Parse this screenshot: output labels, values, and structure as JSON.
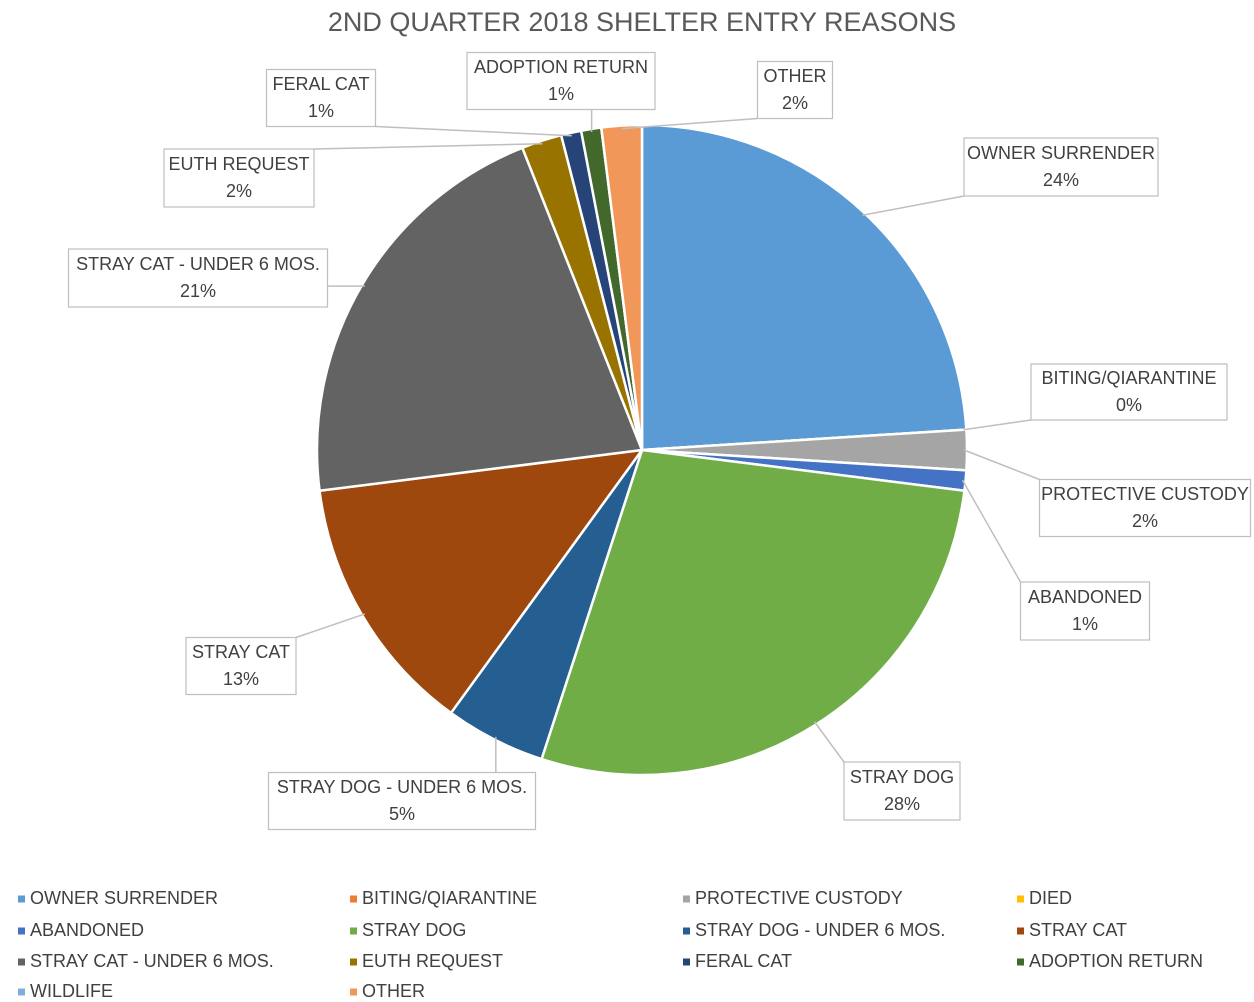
{
  "chart_data": {
    "type": "pie",
    "title": "2ND QUARTER 2018 SHELTER ENTRY REASONS",
    "categories": [
      "OWNER SURRENDER",
      "BITING/QIARANTINE",
      "PROTECTIVE CUSTODY",
      "DIED",
      "ABANDONED",
      "STRAY DOG",
      "STRAY DOG - UNDER 6 MOS.",
      "STRAY CAT",
      "STRAY CAT - UNDER 6 MOS.",
      "EUTH REQUEST",
      "FERAL CAT",
      "ADOPTION RETURN",
      "WILDLIFE",
      "OTHER"
    ],
    "values": [
      24,
      0,
      2,
      0,
      1,
      28,
      5,
      13,
      21,
      2,
      1,
      1,
      0,
      2
    ],
    "value_labels": [
      "24%",
      "0%",
      "2%",
      null,
      "1%",
      "28%",
      "5%",
      "13%",
      "21%",
      "2%",
      "1%",
      "1%",
      null,
      "2%"
    ],
    "colors": [
      "#5b9bd5",
      "#ed7d31",
      "#a5a5a5",
      "#ffc000",
      "#4472c4",
      "#70ad47",
      "#255e91",
      "#9e480e",
      "#636363",
      "#997300",
      "#264478",
      "#43682b",
      "#7cafdd",
      "#f1975a"
    ],
    "legend": "bottom"
  }
}
